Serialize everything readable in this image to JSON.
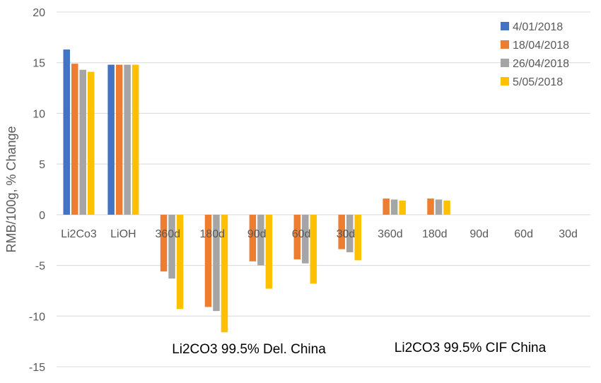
{
  "chart_data": {
    "type": "bar",
    "title": "",
    "ylabel": "RMB/100g, % Change",
    "xlabel": "",
    "ylim": [
      -15,
      20
    ],
    "yticks": [
      20,
      15,
      10,
      5,
      0,
      -5,
      -10,
      -15
    ],
    "grid": true,
    "legend_position": "top-right",
    "categories": [
      "Li2Co3",
      "LiOH",
      "360d",
      "180d",
      "90d",
      "60d",
      "30d",
      "360d",
      "180d",
      "90d",
      "60d",
      "30d"
    ],
    "group_labels": [
      "Li2CO3 99.5% Del. China",
      "Li2CO3 99.5% CIF China"
    ],
    "series": [
      {
        "name": "4/01/2018",
        "color": "#4472C4",
        "values": [
          16.3,
          14.8,
          null,
          null,
          null,
          null,
          null,
          null,
          null,
          null,
          null,
          null
        ]
      },
      {
        "name": "18/04/2018",
        "color": "#ED7D31",
        "values": [
          14.9,
          14.8,
          -5.6,
          -9.1,
          -4.6,
          -4.4,
          -3.4,
          1.6,
          1.6,
          null,
          null,
          null
        ]
      },
      {
        "name": "26/04/2018",
        "color": "#A5A5A5",
        "values": [
          14.3,
          14.8,
          -6.3,
          -9.5,
          -5.0,
          -4.8,
          -3.7,
          1.5,
          1.5,
          null,
          null,
          null
        ]
      },
      {
        "name": "5/05/2018",
        "color": "#FFC000",
        "values": [
          14.1,
          14.8,
          -9.3,
          -11.6,
          -7.3,
          -6.8,
          -4.5,
          1.4,
          1.4,
          null,
          null,
          null
        ]
      }
    ]
  }
}
